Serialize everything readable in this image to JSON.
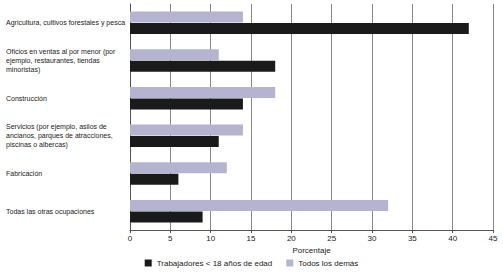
{
  "chart_data": {
    "type": "bar",
    "orientation": "horizontal",
    "categories": [
      "Agricultura, cultivos forestales y pesca",
      "Oficios en ventas al por menor (por ejemplo, restaurantes, tiendas minoristas)",
      "Construcción",
      "Servicios (por ejemplo, asilos de ancianos, parques de atracciones, piscinas o albercas)",
      "Fabricación",
      "Todas las otras ocupaciones"
    ],
    "series": [
      {
        "name": "Trabajadores < 18 años de edad",
        "color": "#1a1a1a",
        "values": [
          42,
          18,
          14,
          11,
          6,
          9
        ]
      },
      {
        "name": "Todos los demás",
        "color": "#b4b4d0",
        "values": [
          14,
          11,
          18,
          14,
          12,
          32
        ]
      }
    ],
    "xlabel": "Porcentaje",
    "xlim": [
      0,
      45
    ],
    "xticks": [
      0,
      5,
      10,
      15,
      20,
      25,
      30,
      35,
      40,
      45
    ],
    "grid": true,
    "legend": "bottom"
  }
}
